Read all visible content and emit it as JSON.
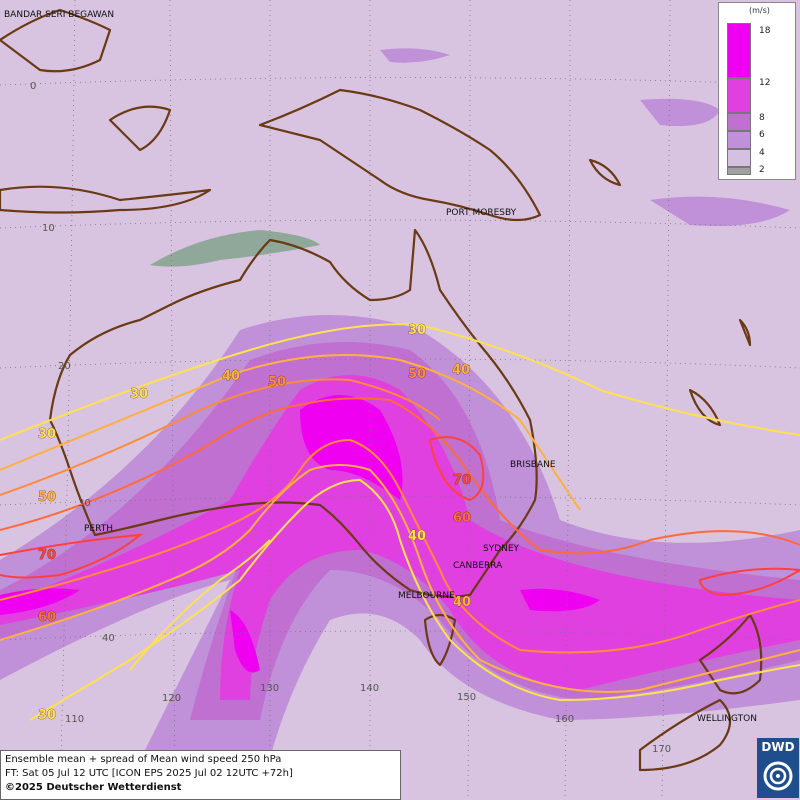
{
  "legend": {
    "unit": "(m/s)",
    "levels": [
      {
        "label": "18",
        "color": "#f000f0"
      },
      {
        "label": "12",
        "color": "#e040e0"
      },
      {
        "label": "8",
        "color": "#c070d0"
      },
      {
        "label": "6",
        "color": "#c090d8"
      },
      {
        "label": "4",
        "color": "#d6c0e2"
      },
      {
        "label": "2",
        "color": "#a0a0a0"
      }
    ]
  },
  "cities": [
    {
      "name": "BANDAR SERI BEGAWAN"
    },
    {
      "name": "PORT MORESBY"
    },
    {
      "name": "BRISBANE"
    },
    {
      "name": "SYDNEY"
    },
    {
      "name": "CANBERRA"
    },
    {
      "name": "MELBOURNE"
    },
    {
      "name": "PERTH"
    },
    {
      "name": "WELLINGTON"
    }
  ],
  "grid_labels": {
    "lat": [
      "0",
      "10",
      "20",
      "30",
      "40"
    ],
    "lon": [
      "110",
      "120",
      "130",
      "140",
      "150",
      "160",
      "170"
    ]
  },
  "contour_labels": [
    "30",
    "40",
    "50",
    "30",
    "40",
    "50",
    "70",
    "60",
    "30",
    "40",
    "30",
    "50",
    "70",
    "60",
    "40"
  ],
  "info": {
    "line1": "Ensemble mean + spread of Mean wind speed 250 hPa",
    "line2": "FT: Sat 05 Jul 12 UTC [ICON EPS 2025 Jul 02 12UTC +72h]",
    "line3": "©2025 Deutscher Wetterdienst"
  },
  "logo": {
    "text": "DWD",
    "name": "dwd-logo-icon"
  }
}
